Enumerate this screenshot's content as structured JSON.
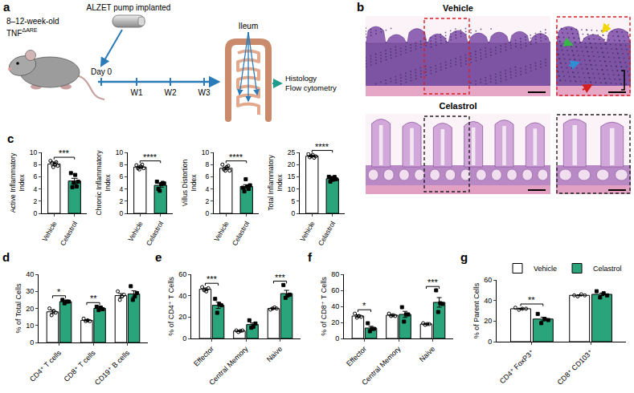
{
  "figure": {
    "a": {
      "letter": "a",
      "mouse_label": "8–12-week-old",
      "strain": "TNF",
      "strain_superscript": "ΔARE",
      "pump": "ALZET pump implanted",
      "day": "Day 0",
      "weeks": [
        "W1",
        "W2",
        "W3"
      ],
      "organ": "Ileum",
      "readouts": [
        "Histology",
        "Flow cytometry"
      ]
    },
    "b": {
      "letter": "b",
      "rows": [
        "Vehicle",
        "Celastrol"
      ]
    }
  },
  "chart_data": [
    {
      "panel": "c",
      "type": "bar",
      "categories": [
        "Vehicle",
        "Celastrol"
      ],
      "values": [
        8.1,
        5.3
      ],
      "colors": [
        "#ffffff",
        "#2aa57b"
      ],
      "error": [
        0.3,
        0.45
      ],
      "points": [
        [
          8.6,
          8.3,
          7.6,
          8.0,
          8.4,
          7.8
        ],
        [
          6.6,
          4.3,
          5.0,
          6.3,
          4.4,
          5.2
        ]
      ],
      "y_label": "Active Inflammatory Index",
      "ylim": [
        0,
        10
      ],
      "yticks": [
        0,
        2,
        4,
        6,
        8,
        10
      ],
      "significance": "***"
    },
    {
      "type": "bar",
      "categories": [
        "Vehicle",
        "Celastrol"
      ],
      "values": [
        7.6,
        4.6
      ],
      "colors": [
        "#ffffff",
        "#2aa57b"
      ],
      "error": [
        0.15,
        0.3
      ],
      "points": [
        [
          7.9,
          7.4,
          7.2,
          7.7,
          8.0,
          7.4
        ],
        [
          5.2,
          4.0,
          3.7,
          4.8,
          5.0,
          4.9
        ]
      ],
      "y_label": "Chronic Inflammatory Index",
      "ylim": [
        0,
        10
      ],
      "yticks": [
        0,
        2,
        4,
        6,
        8,
        10
      ],
      "significance": "****"
    },
    {
      "type": "bar",
      "categories": [
        "Vehicle",
        "Celastrol"
      ],
      "values": [
        7.4,
        4.4
      ],
      "colors": [
        "#ffffff",
        "#2aa57b"
      ],
      "error": [
        0.2,
        0.3
      ],
      "points": [
        [
          8.0,
          7.2,
          7.0,
          7.6,
          7.8,
          7.0
        ],
        [
          4.2,
          3.6,
          5.6,
          4.4,
          4.0,
          4.6
        ]
      ],
      "y_label": "Villus Distortion Index",
      "ylim": [
        0,
        10
      ],
      "yticks": [
        0,
        2,
        4,
        6,
        8,
        10
      ],
      "significance": "****"
    },
    {
      "type": "bar",
      "categories": [
        "Vehicle",
        "Celastrol"
      ],
      "values": [
        23.5,
        14.2
      ],
      "colors": [
        "#ffffff",
        "#2aa57b"
      ],
      "error": [
        0.25,
        0.35
      ],
      "points": [
        [
          24.3,
          23.0,
          23.5,
          24.0,
          22.8,
          23.4
        ],
        [
          15.0,
          13.0,
          14.5,
          13.8,
          14.9,
          14.0
        ]
      ],
      "y_label": "Total Inflammatory Index",
      "ylim": [
        0,
        25
      ],
      "yticks": [
        0,
        5,
        10,
        15,
        20,
        25
      ],
      "significance": "****"
    },
    {
      "panel": "d",
      "type": "bar",
      "categories": [
        "CD4⁺ T cells",
        "CD8⁺ T cells",
        "CD19⁺ B cells"
      ],
      "y_label": "% of Total Cells",
      "ylim": [
        0,
        40
      ],
      "yticks": [
        0,
        10,
        20,
        30,
        40
      ],
      "legend": false,
      "series": [
        {
          "name": "Vehicle",
          "color": "#ffffff",
          "marker": "open circle",
          "values": [
            18,
            13,
            27.5
          ],
          "error": [
            1,
            0.4,
            1.2
          ],
          "points": [
            [
              20,
              16,
              18.5,
              17.5
            ],
            [
              14,
              12.5,
              13,
              12.5
            ],
            [
              30,
              25,
              27,
              28
            ]
          ]
        },
        {
          "name": "Celastrol",
          "color": "#2aa57b",
          "marker": "square",
          "values": [
            24,
            20,
            28.5
          ],
          "error": [
            0.8,
            0.6,
            1.8
          ],
          "points": [
            [
              25,
              23,
              24,
              24
            ],
            [
              21,
              19,
              20.5,
              19.5
            ],
            [
              33,
              25,
              27,
              29
            ]
          ]
        }
      ],
      "significance": [
        {
          "category": "CD4⁺ T cells",
          "label": "*"
        },
        {
          "category": "CD8⁺ T cells",
          "label": "**"
        }
      ]
    },
    {
      "panel": "e",
      "type": "bar",
      "categories": [
        "Effector",
        "Central Memory",
        "Naive"
      ],
      "y_label": "% of CD4⁺ T Cells",
      "ylim": [
        0,
        60
      ],
      "yticks": [
        0,
        20,
        40,
        60
      ],
      "legend": false,
      "series": [
        {
          "name": "Vehicle",
          "color": "#ffffff",
          "marker": "open circle",
          "values": [
            46,
            7,
            28
          ],
          "error": [
            1.2,
            0.4,
            0.5
          ],
          "points": [
            [
              48,
              45,
              44,
              47
            ],
            [
              7.5,
              6,
              7,
              7.5
            ],
            [
              27,
              28,
              29,
              28
            ]
          ]
        },
        {
          "name": "Celastrol",
          "color": "#2aa57b",
          "marker": "square",
          "values": [
            31,
            13,
            42
          ],
          "error": [
            3,
            1.5,
            3
          ],
          "points": [
            [
              37,
              24,
              32,
              31
            ],
            [
              17,
              10,
              11,
              14
            ],
            [
              50,
              38,
              40,
              41
            ]
          ]
        }
      ],
      "significance": [
        {
          "category": "Effector",
          "label": "***"
        },
        {
          "category": "Naive",
          "label": "***"
        }
      ]
    },
    {
      "panel": "f",
      "type": "bar",
      "categories": [
        "Effector",
        "Central Memory",
        "Naive"
      ],
      "y_label": "% of CD8⁺ T Cells",
      "ylim": [
        0,
        80
      ],
      "yticks": [
        0,
        20,
        40,
        60,
        80
      ],
      "legend": false,
      "series": [
        {
          "name": "Vehicle",
          "color": "#ffffff",
          "marker": "open circle",
          "values": [
            28,
            29,
            18
          ],
          "error": [
            1.5,
            0.8,
            0.6
          ],
          "points": [
            [
              31,
              26,
              28,
              27
            ],
            [
              31,
              28,
              29,
              28
            ],
            [
              19,
              17,
              18,
              18
            ]
          ]
        },
        {
          "name": "Celastrol",
          "color": "#2aa57b",
          "marker": "square",
          "values": [
            13,
            30,
            45
          ],
          "error": [
            2.2,
            3.8,
            6
          ],
          "points": [
            [
              19,
              9,
              12,
              12
            ],
            [
              39,
              21,
              30,
              30
            ],
            [
              60,
              33,
              44,
              43
            ]
          ]
        }
      ],
      "significance": [
        {
          "category": "Effector",
          "label": "*"
        },
        {
          "category": "Naive",
          "label": "***"
        }
      ]
    },
    {
      "panel": "g",
      "type": "bar",
      "categories": [
        "CD4⁺ FoxP3⁺",
        "CD8⁺ CD103⁺"
      ],
      "y_label": "% of Parent Cells",
      "ylim": [
        0,
        60
      ],
      "yticks": [
        0,
        20,
        40,
        60
      ],
      "legend": "top right",
      "series": [
        {
          "name": "Vehicle",
          "color": "#ffffff",
          "marker": "open circle",
          "values": [
            32,
            45
          ],
          "error": [
            0.5,
            0.5
          ],
          "points": [
            [
              33,
              31,
              32,
              32
            ],
            [
              45,
              44,
              46,
              45
            ]
          ]
        },
        {
          "name": "Celastrol",
          "color": "#2aa57b",
          "marker": "square",
          "values": [
            22,
            46
          ],
          "error": [
            1.8,
            1.2
          ],
          "points": [
            [
              27,
              18,
              22,
              21
            ],
            [
              49,
              43,
              47,
              45
            ]
          ]
        }
      ],
      "significance": [
        {
          "category": "CD4⁺ FoxP3⁺",
          "label": "**"
        }
      ]
    }
  ]
}
